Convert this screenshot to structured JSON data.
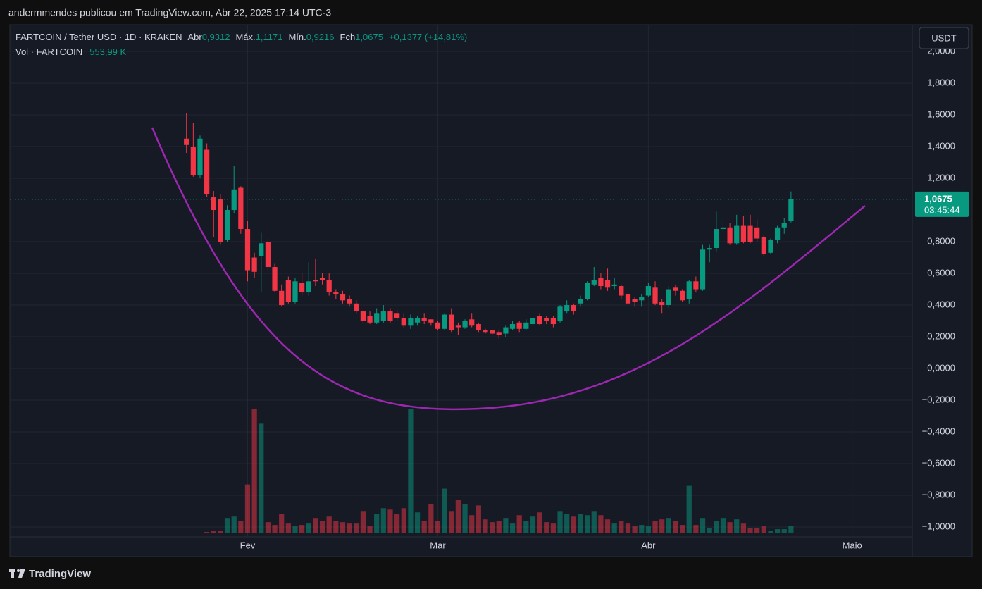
{
  "header": {
    "published": "andermmendes publicou em TradingView.com, Abr 22, 2025 17:14 UTC-3",
    "currency_button": "USDT",
    "brand": "TradingView"
  },
  "legend": {
    "symbol": "FARTCOIN / Tether USD · 1D · KRAKEN",
    "open_label": "Abr",
    "open": "0,9312",
    "high_label": "Máx.",
    "high": "1,1171",
    "low_label": "Mín.",
    "low": "0,9216",
    "close_label": "Fch",
    "close": "1,0675",
    "change": "+0,1377 (+14,81%)",
    "volume_label": "Vol · FARTCOIN",
    "volume": "553,99 K",
    "countdown": "03:45:44"
  },
  "chart_data": {
    "type": "candlestick",
    "open": [
      1.45,
      1.4,
      1.22,
      1.38,
      1.08,
      1.07,
      0.81,
      1.0,
      1.14,
      0.88,
      0.7,
      0.71,
      0.8,
      0.64,
      0.49,
      0.56,
      0.42,
      0.54,
      0.48,
      0.56,
      0.57,
      0.56,
      0.48,
      0.47,
      0.44,
      0.41,
      0.36,
      0.33,
      0.29,
      0.3,
      0.36,
      0.35,
      0.32,
      0.27,
      0.29,
      0.32,
      0.31,
      0.29,
      0.25,
      0.34,
      0.27,
      0.26,
      0.31,
      0.28,
      0.24,
      0.24,
      0.23,
      0.22,
      0.25,
      0.29,
      0.25,
      0.28,
      0.33,
      0.32,
      0.32,
      0.3,
      0.36,
      0.4,
      0.41,
      0.44,
      0.53,
      0.57,
      0.56,
      0.52,
      0.52,
      0.47,
      0.44,
      0.43,
      0.46,
      0.51,
      0.42,
      0.4,
      0.51,
      0.49,
      0.44,
      0.55,
      0.5,
      0.75,
      0.76,
      0.88,
      0.89,
      0.79,
      0.9,
      0.9,
      0.89,
      0.83,
      0.73,
      0.81,
      0.89,
      0.9312
    ],
    "high": [
      1.61,
      1.55,
      1.47,
      1.42,
      1.12,
      1.1,
      1.03,
      1.28,
      1.15,
      0.93,
      0.73,
      0.86,
      0.82,
      0.66,
      0.53,
      0.58,
      0.57,
      0.6,
      0.67,
      0.69,
      0.6,
      0.6,
      0.5,
      0.49,
      0.46,
      0.43,
      0.37,
      0.36,
      0.38,
      0.4,
      0.38,
      0.37,
      0.35,
      0.34,
      0.33,
      0.35,
      0.31,
      0.3,
      0.35,
      0.38,
      0.29,
      0.31,
      0.35,
      0.29,
      0.25,
      0.24,
      0.24,
      0.27,
      0.3,
      0.3,
      0.31,
      0.33,
      0.35,
      0.33,
      0.33,
      0.4,
      0.43,
      0.41,
      0.46,
      0.55,
      0.64,
      0.6,
      0.63,
      0.57,
      0.53,
      0.49,
      0.45,
      0.47,
      0.54,
      0.55,
      0.44,
      0.52,
      0.53,
      0.5,
      0.56,
      0.58,
      0.78,
      0.78,
      0.99,
      0.94,
      0.92,
      0.97,
      0.96,
      0.97,
      0.94,
      0.84,
      0.82,
      0.9,
      0.95,
      1.1171
    ],
    "low": [
      1.36,
      1.21,
      1.2,
      1.08,
      0.83,
      0.78,
      0.8,
      0.98,
      0.85,
      0.55,
      0.57,
      0.48,
      0.62,
      0.48,
      0.39,
      0.41,
      0.41,
      0.46,
      0.46,
      0.52,
      0.53,
      0.46,
      0.44,
      0.41,
      0.39,
      0.35,
      0.28,
      0.28,
      0.28,
      0.29,
      0.29,
      0.3,
      0.26,
      0.25,
      0.27,
      0.28,
      0.27,
      0.24,
      0.24,
      0.23,
      0.21,
      0.25,
      0.26,
      0.23,
      0.22,
      0.21,
      0.19,
      0.2,
      0.24,
      0.23,
      0.24,
      0.27,
      0.27,
      0.28,
      0.26,
      0.29,
      0.35,
      0.34,
      0.39,
      0.43,
      0.52,
      0.5,
      0.49,
      0.5,
      0.44,
      0.4,
      0.39,
      0.39,
      0.45,
      0.4,
      0.35,
      0.38,
      0.46,
      0.42,
      0.41,
      0.48,
      0.49,
      0.67,
      0.74,
      0.86,
      0.78,
      0.78,
      0.79,
      0.79,
      0.8,
      0.71,
      0.72,
      0.79,
      0.85,
      0.9216
    ],
    "close": [
      1.41,
      1.22,
      1.45,
      1.1,
      1.0,
      0.8,
      1.0,
      1.13,
      0.88,
      0.62,
      0.61,
      0.79,
      0.64,
      0.49,
      0.4,
      0.42,
      0.55,
      0.48,
      0.55,
      0.55,
      0.56,
      0.48,
      0.47,
      0.43,
      0.41,
      0.36,
      0.3,
      0.29,
      0.35,
      0.36,
      0.3,
      0.32,
      0.27,
      0.32,
      0.32,
      0.3,
      0.29,
      0.25,
      0.34,
      0.24,
      0.26,
      0.3,
      0.27,
      0.24,
      0.23,
      0.22,
      0.21,
      0.26,
      0.28,
      0.25,
      0.29,
      0.32,
      0.28,
      0.3,
      0.28,
      0.39,
      0.4,
      0.36,
      0.44,
      0.54,
      0.56,
      0.52,
      0.51,
      0.53,
      0.46,
      0.41,
      0.42,
      0.45,
      0.52,
      0.41,
      0.4,
      0.5,
      0.49,
      0.43,
      0.55,
      0.5,
      0.75,
      0.76,
      0.88,
      0.89,
      0.79,
      0.9,
      0.8,
      0.8,
      0.82,
      0.72,
      0.81,
      0.89,
      0.92,
      1.0675
    ],
    "volume": [
      55,
      55,
      55,
      110,
      220,
      165,
      1210,
      1320,
      990,
      3850,
      9790,
      8635,
      880,
      660,
      1540,
      770,
      550,
      660,
      770,
      1210,
      990,
      1320,
      990,
      880,
      770,
      770,
      1760,
      550,
      1540,
      1980,
      1870,
      1540,
      1980,
      9790,
      1650,
      990,
      2310,
      990,
      3520,
      1760,
      2640,
      2310,
      1430,
      2200,
      1100,
      880,
      990,
      1210,
      770,
      1430,
      990,
      1320,
      1650,
      880,
      770,
      1760,
      1540,
      1320,
      1540,
      1430,
      1760,
      1430,
      1100,
      770,
      990,
      770,
      550,
      660,
      550,
      990,
      1100,
      1210,
      990,
      660,
      3740,
      660,
      1210,
      440,
      990,
      1210,
      880,
      1100,
      770,
      440,
      440,
      550,
      220,
      330,
      330,
      553.99
    ],
    "up_color": "#089981",
    "down_color": "#f23645",
    "xlim": [
      -26,
      106.85
    ],
    "xticks": [
      {
        "value": 9,
        "label": "Fev"
      },
      {
        "value": 37,
        "label": "Mar"
      },
      {
        "value": 68,
        "label": "Abr"
      },
      {
        "value": 98,
        "label": "Maio"
      }
    ],
    "ylim": [
      -1.062,
      2.169
    ],
    "yticks": [
      {
        "value": 2.0,
        "label": "2,0000"
      },
      {
        "value": 1.8,
        "label": "1,8000"
      },
      {
        "value": 1.6,
        "label": "1,6000"
      },
      {
        "value": 1.4,
        "label": "1,4000"
      },
      {
        "value": 1.2,
        "label": "1,2000"
      },
      {
        "value": 0.8,
        "label": "0,8000"
      },
      {
        "value": 0.6,
        "label": "0,6000"
      },
      {
        "value": 0.4,
        "label": "0,4000"
      },
      {
        "value": 0.2,
        "label": "0,2000"
      },
      {
        "value": 0,
        "label": "0,0000"
      },
      {
        "value": -0.2,
        "label": "−0,2000"
      },
      {
        "value": -0.4,
        "label": "−0,4000"
      },
      {
        "value": -0.6,
        "label": "−0,6000"
      },
      {
        "value": -0.8,
        "label": "−0,8000"
      },
      {
        "value": -1.0,
        "label": "−1,0000"
      }
    ],
    "vlim": [
      0,
      40000
    ],
    "grid": true
  }
}
